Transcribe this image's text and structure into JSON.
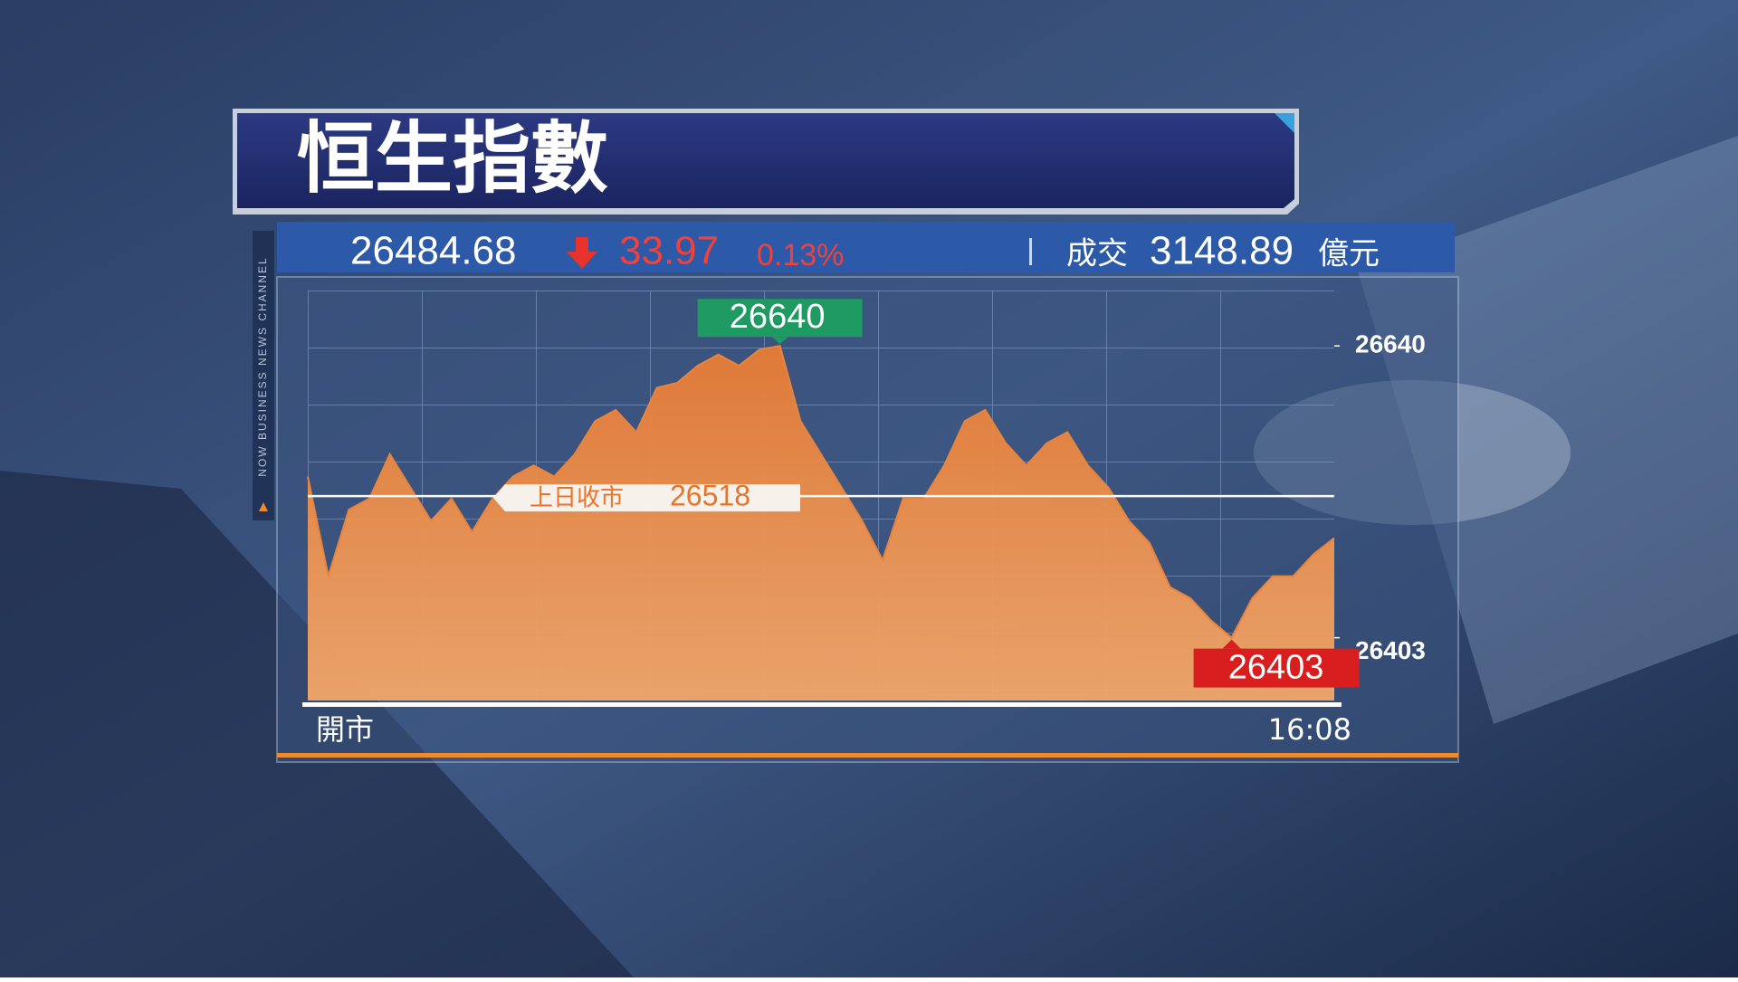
{
  "chart_data": {
    "type": "area",
    "title": "恒生指數",
    "channel": "NOW BUSINESS NEWS CHANNEL",
    "quote": {
      "last": 26484.68,
      "change": 33.97,
      "change_percent": {
        "value": 0.13,
        "label": "0.13%"
      },
      "turnover_label": "成交",
      "turnover": 3148.89,
      "turnover_unit": "億元"
    },
    "categories": [
      "開市",
      null,
      null,
      null,
      null,
      null,
      null,
      null,
      null,
      null,
      null,
      null,
      null,
      null,
      null,
      null,
      null,
      null,
      null,
      null,
      null,
      null,
      null,
      null,
      null,
      null,
      null,
      null,
      null,
      null,
      null,
      null,
      null,
      null,
      null,
      null,
      null,
      null,
      null,
      null,
      null,
      null,
      null,
      null,
      null,
      null,
      null,
      null,
      null,
      null,
      "16:08"
    ],
    "values": [
      26534,
      26453,
      26507,
      26516,
      26552,
      26525,
      26498,
      26516,
      26489,
      26516,
      26534,
      26543,
      26534,
      26552,
      26579,
      26588,
      26570,
      26606,
      26610,
      26624,
      26633,
      26624,
      26637,
      26640,
      26579,
      26552,
      26525,
      26498,
      26466,
      26516,
      26516,
      26543,
      26579,
      26588,
      26561,
      26543,
      26561,
      26570,
      26543,
      26525,
      26498,
      26480,
      26444,
      26435,
      26417,
      26403,
      26435,
      26453,
      26453,
      26471,
      26484
    ],
    "color": "#e8843c",
    "ylim": [
      26352,
      26685
    ],
    "yticks": [
      26403,
      26640
    ],
    "max_label": 26640,
    "min_label": 26403,
    "reference": {
      "label": "上日收市",
      "value": 26518
    }
  }
}
